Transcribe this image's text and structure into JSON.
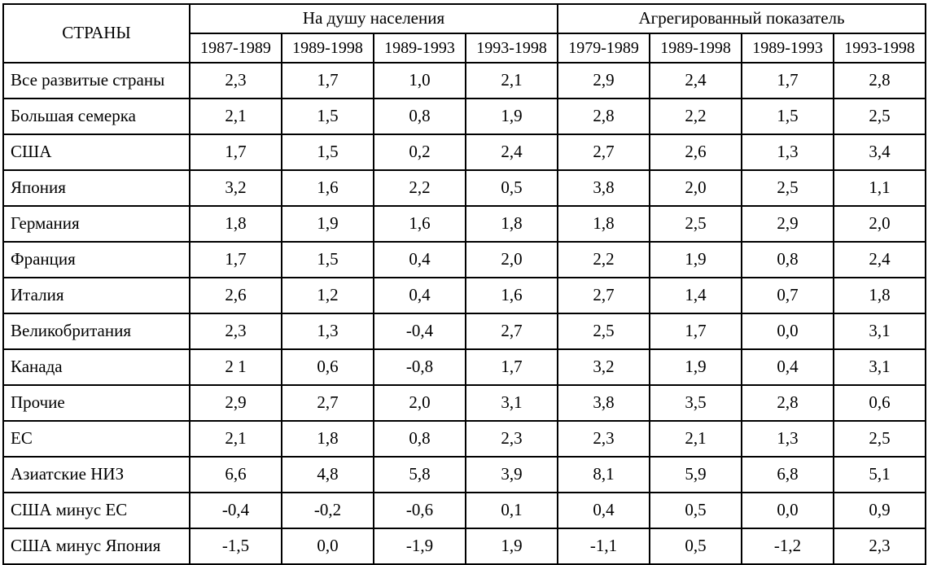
{
  "chart_data": {
    "type": "table",
    "corner_header": "СТРАНЫ",
    "groups": [
      {
        "label": "На душу населения",
        "periods": [
          "1987-1989",
          "1989-1998",
          "1989-1993",
          "1993-1998"
        ]
      },
      {
        "label": "Агрегированный показатель",
        "periods": [
          "1979-1989",
          "1989-1998",
          "1989-1993",
          "1993-1998"
        ]
      }
    ],
    "rows": [
      {
        "label": "Все развитые страны",
        "values": [
          "2,3",
          "1,7",
          "1,0",
          "2,1",
          "2,9",
          "2,4",
          "1,7",
          "2,8"
        ]
      },
      {
        "label": "Большая семерка",
        "values": [
          "2,1",
          "1,5",
          "0,8",
          "1,9",
          "2,8",
          "2,2",
          "1,5",
          "2,5"
        ]
      },
      {
        "label": "США",
        "values": [
          "1,7",
          "1,5",
          "0,2",
          "2,4",
          "2,7",
          "2,6",
          "1,3",
          "3,4"
        ]
      },
      {
        "label": "Япония",
        "values": [
          "3,2",
          "1,6",
          "2,2",
          "0,5",
          "3,8",
          "2,0",
          "2,5",
          "1,1"
        ]
      },
      {
        "label": "Германия",
        "values": [
          "1,8",
          "1,9",
          "1,6",
          "1,8",
          "1,8",
          "2,5",
          "2,9",
          "2,0"
        ]
      },
      {
        "label": "Франция",
        "values": [
          "1,7",
          "1,5",
          "0,4",
          "2,0",
          "2,2",
          "1,9",
          "0,8",
          "2,4"
        ]
      },
      {
        "label": "Италия",
        "values": [
          "2,6",
          "1,2",
          "0,4",
          "1,6",
          "2,7",
          "1,4",
          "0,7",
          "1,8"
        ]
      },
      {
        "label": "Великобритания",
        "values": [
          "2,3",
          "1,3",
          "-0,4",
          "2,7",
          "2,5",
          "1,7",
          "0,0",
          "3,1"
        ]
      },
      {
        "label": "Канада",
        "values": [
          "2 1",
          "0,6",
          "-0,8",
          "1,7",
          "3,2",
          "1,9",
          "0,4",
          "3,1"
        ]
      },
      {
        "label": "Прочие",
        "values": [
          "2,9",
          "2,7",
          "2,0",
          "3,1",
          "3,8",
          "3,5",
          "2,8",
          "0,6"
        ]
      },
      {
        "label": "ЕС",
        "values": [
          "2,1",
          "1,8",
          "0,8",
          "2,3",
          "2,3",
          "2,1",
          "1,3",
          "2,5"
        ]
      },
      {
        "label": "Азиатские НИЗ",
        "values": [
          "6,6",
          "4,8",
          "5,8",
          "3,9",
          "8,1",
          "5,9",
          "6,8",
          "5,1"
        ]
      },
      {
        "label": "США минус ЕС",
        "values": [
          "-0,4",
          "-0,2",
          "-0,6",
          "0,1",
          "0,4",
          "0,5",
          "0,0",
          "0,9"
        ]
      },
      {
        "label": "США минус Япония",
        "values": [
          "-1,5",
          "0,0",
          "-1,9",
          "1,9",
          "-1,1",
          "0,5",
          "-1,2",
          "2,3"
        ]
      }
    ]
  }
}
